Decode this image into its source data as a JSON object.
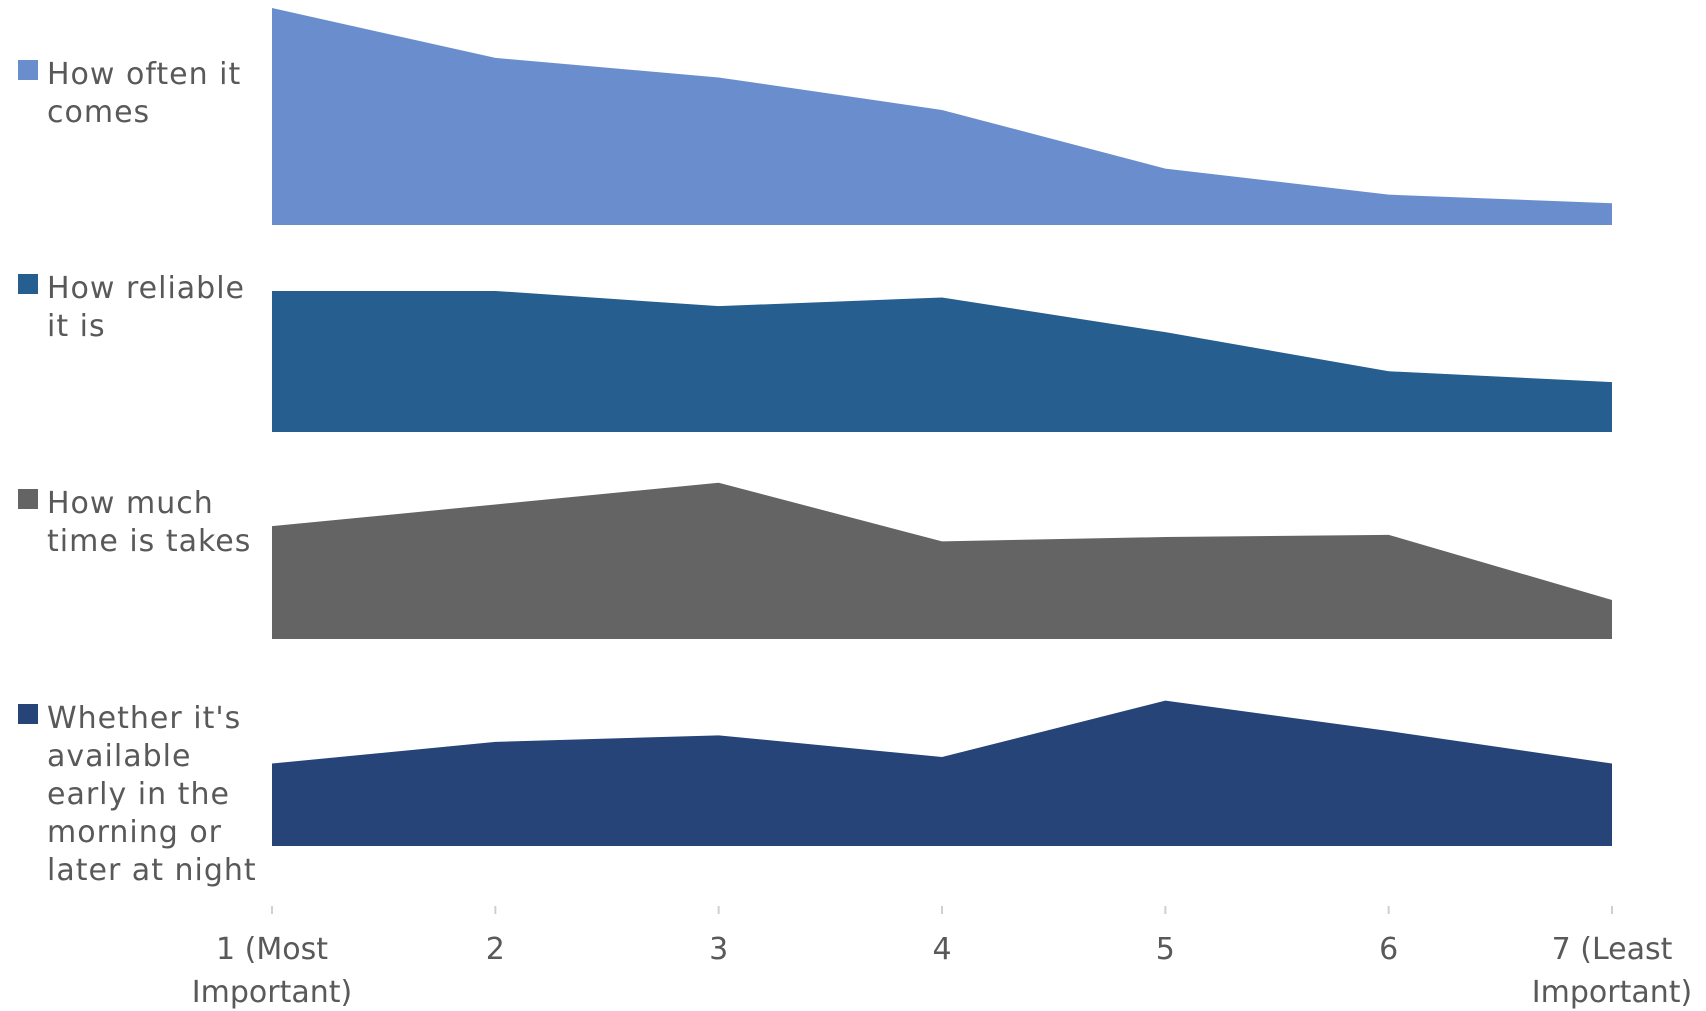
{
  "chart_data": {
    "type": "area",
    "layout": "stacked-panels",
    "categories": [
      [
        "1 (Most",
        "Important)"
      ],
      [
        "2"
      ],
      [
        "3"
      ],
      [
        "4"
      ],
      [
        "5"
      ],
      [
        "6"
      ],
      [
        "7 (Least",
        "Important)"
      ]
    ],
    "x": [
      1,
      2,
      3,
      4,
      5,
      6,
      7
    ],
    "ylim": [
      0,
      1
    ],
    "series": [
      {
        "name": "How often it comes",
        "label_lines": [
          "How often it",
          "comes"
        ],
        "color": "#6a8ecd",
        "values": [
          1.0,
          0.77,
          0.68,
          0.53,
          0.26,
          0.14,
          0.1
        ]
      },
      {
        "name": "How reliable it is",
        "label_lines": [
          "How reliable",
          "it is"
        ],
        "color": "#255e8f",
        "values": [
          0.65,
          0.65,
          0.58,
          0.62,
          0.46,
          0.28,
          0.23
        ]
      },
      {
        "name": "How much time is takes",
        "label_lines": [
          "How much",
          "time is takes"
        ],
        "color": "#646464",
        "values": [
          0.52,
          0.62,
          0.72,
          0.45,
          0.47,
          0.48,
          0.18
        ]
      },
      {
        "name": "Whether it's available early in the morning or later at night",
        "label_lines": [
          "Whether it's",
          "available",
          "early in the",
          "morning or",
          "later at night"
        ],
        "color": "#264478",
        "values": [
          0.38,
          0.48,
          0.51,
          0.41,
          0.67,
          0.53,
          0.38
        ]
      }
    ],
    "grid": false,
    "legend": "left"
  }
}
